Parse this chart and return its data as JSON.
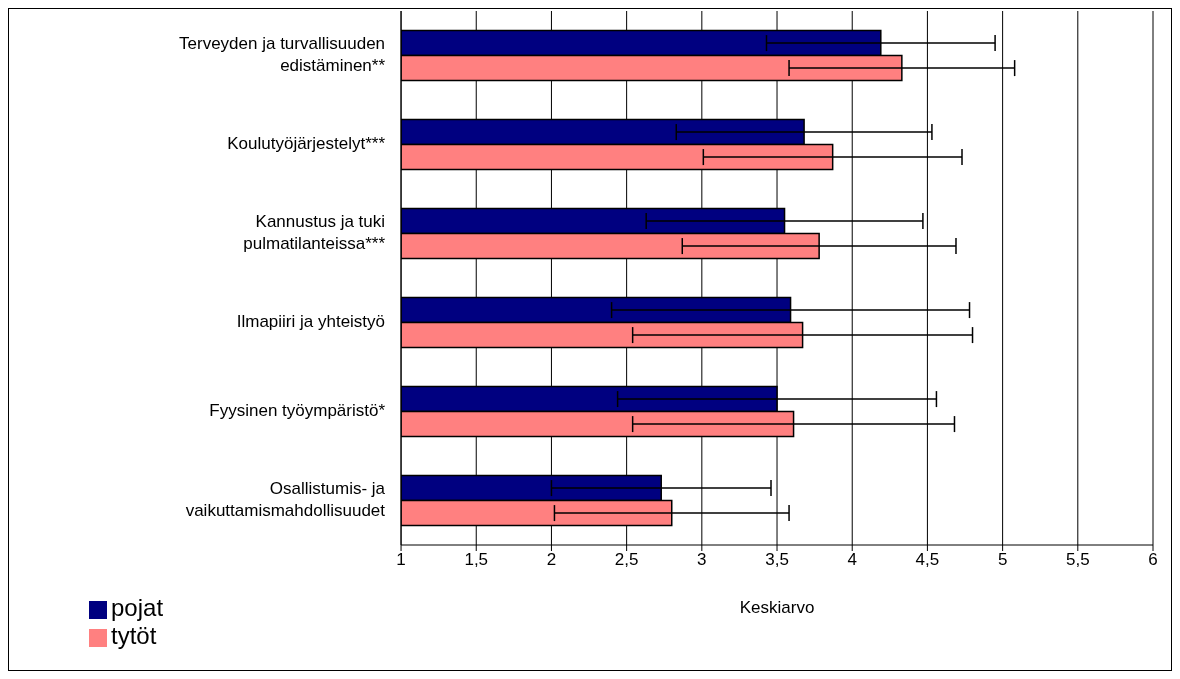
{
  "chart_data": {
    "type": "bar",
    "orientation": "horizontal",
    "xlabel": "Keskiarvo",
    "categories": [
      "Terveyden ja turvallisuuden edistäminen**",
      "Koulutyöjärjestelyt***",
      "Kannustus ja tuki pulmatilanteissa***",
      "Ilmapiiri ja yhteistyö",
      "Fyysinen työympäristö*",
      "Osallistumis- ja vaikuttamismahdollisuudet"
    ],
    "series": [
      {
        "name": "pojat",
        "color": "#000080",
        "values": [
          4.19,
          3.68,
          3.55,
          3.59,
          3.5,
          2.73
        ],
        "errors": [
          0.76,
          0.85,
          0.92,
          1.19,
          1.06,
          0.73
        ]
      },
      {
        "name": "tytöt",
        "color": "#ff8080",
        "values": [
          4.33,
          3.87,
          3.78,
          3.67,
          3.61,
          2.8
        ],
        "errors": [
          0.75,
          0.86,
          0.91,
          1.13,
          1.07,
          0.78
        ]
      }
    ],
    "xlim": [
      1,
      6
    ],
    "xticks": [
      1,
      {
        "value": 1.5,
        "label": "1,5"
      },
      2,
      {
        "value": 2.5,
        "label": "2,5"
      },
      3,
      {
        "value": 3.5,
        "label": "3,5"
      },
      4,
      {
        "value": 4.5,
        "label": "4,5"
      },
      5,
      {
        "value": 5.5,
        "label": "5,5"
      },
      6
    ],
    "grid": "x",
    "legend": "bottom left"
  }
}
